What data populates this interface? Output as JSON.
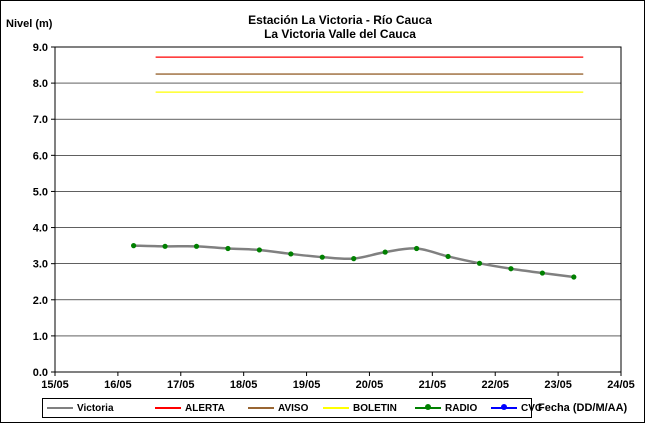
{
  "chart_data": {
    "type": "line",
    "title": "Estación La Victoria - Río Cauca",
    "subtitle": "La Victoria Valle del Cauca",
    "ylabel": "Nivel (m)",
    "xlabel": "Fecha (DD/M/AA)",
    "ylim": [
      0,
      9
    ],
    "yticks": [
      "0.0",
      "1.0",
      "2.0",
      "3.0",
      "4.0",
      "5.0",
      "6.0",
      "7.0",
      "8.0",
      "9.0"
    ],
    "xlim": [
      0,
      9
    ],
    "xticks": [
      "15/05",
      "16/05",
      "17/05",
      "18/05",
      "19/05",
      "20/05",
      "21/05",
      "22/05",
      "23/05",
      "24/05"
    ],
    "grid": "horizontal",
    "legend_position": "bottom",
    "series": [
      {
        "name": "Victoria",
        "color": "#808080",
        "style": "smooth-line",
        "x": [
          1.25,
          1.75,
          2.25,
          2.75,
          3.25,
          3.75,
          4.25,
          4.75,
          5.25,
          5.75,
          6.25,
          6.75,
          7.25,
          7.75,
          8.25
        ],
        "values": [
          3.5,
          3.48,
          3.48,
          3.42,
          3.38,
          3.27,
          3.18,
          3.14,
          3.32,
          3.42,
          3.2,
          3.01,
          2.86,
          2.74,
          2.63
        ]
      },
      {
        "name": "ALERTA",
        "color": "#ff0000",
        "style": "line",
        "x": [
          1.6,
          8.4
        ],
        "values": [
          8.72,
          8.72
        ]
      },
      {
        "name": "AVISO",
        "color": "#996633",
        "style": "line",
        "x": [
          1.6,
          8.4
        ],
        "values": [
          8.25,
          8.25
        ]
      },
      {
        "name": "BOLETIN",
        "color": "#ffff00",
        "style": "line",
        "x": [
          1.6,
          8.4
        ],
        "values": [
          7.75,
          7.75
        ]
      },
      {
        "name": "RADIO",
        "color": "#008000",
        "style": "markers",
        "x": [
          1.25,
          1.75,
          2.25,
          2.75,
          3.25,
          3.75,
          4.25,
          4.75,
          5.25,
          5.75,
          6.25,
          6.75,
          7.25,
          7.75,
          8.25
        ],
        "values": [
          3.5,
          3.48,
          3.48,
          3.42,
          3.38,
          3.27,
          3.18,
          3.14,
          3.32,
          3.42,
          3.2,
          3.01,
          2.86,
          2.74,
          2.63
        ]
      },
      {
        "name": "CVC",
        "color": "#0000ff",
        "style": "markers",
        "x": [],
        "values": []
      }
    ]
  }
}
